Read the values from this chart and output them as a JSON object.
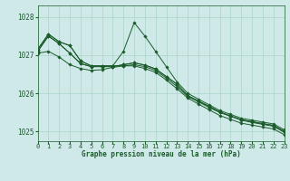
{
  "xlabel": "Graphe pression niveau de la mer (hPa)",
  "bg_color": "#cfe8e8",
  "grid_color": "#aad4cc",
  "line_color": "#1a5c2a",
  "xlim": [
    0,
    23
  ],
  "ylim": [
    1024.75,
    1028.3
  ],
  "yticks": [
    1025,
    1026,
    1027,
    1028
  ],
  "xticks": [
    0,
    1,
    2,
    3,
    4,
    5,
    6,
    7,
    8,
    9,
    10,
    11,
    12,
    13,
    14,
    15,
    16,
    17,
    18,
    19,
    20,
    21,
    22,
    23
  ],
  "series": [
    [
      1027.15,
      1027.55,
      1027.35,
      1027.25,
      1026.85,
      1026.72,
      1026.72,
      1026.72,
      1026.72,
      1026.72,
      1026.65,
      1026.55,
      1026.35,
      1026.12,
      1025.88,
      1025.72,
      1025.57,
      1025.42,
      1025.32,
      1025.22,
      1025.17,
      1025.12,
      1025.07,
      1024.92
    ],
    [
      1027.15,
      1027.55,
      1027.35,
      1027.25,
      1026.85,
      1026.72,
      1026.72,
      1026.72,
      1027.1,
      1027.85,
      1027.5,
      1027.1,
      1026.7,
      1026.3,
      1026.0,
      1025.85,
      1025.7,
      1025.55,
      1025.45,
      1025.35,
      1025.3,
      1025.25,
      1025.2,
      1025.05
    ],
    [
      1027.1,
      1027.5,
      1027.3,
      1027.05,
      1026.78,
      1026.7,
      1026.7,
      1026.7,
      1026.75,
      1026.8,
      1026.74,
      1026.64,
      1026.44,
      1026.24,
      1025.94,
      1025.8,
      1025.66,
      1025.51,
      1025.41,
      1025.31,
      1025.26,
      1025.21,
      1025.16,
      1025.01
    ],
    [
      1027.1,
      1027.5,
      1027.3,
      1027.05,
      1026.78,
      1026.7,
      1026.7,
      1026.7,
      1026.75,
      1026.8,
      1026.74,
      1026.64,
      1026.44,
      1026.24,
      1025.94,
      1025.8,
      1025.66,
      1025.51,
      1025.41,
      1025.31,
      1025.26,
      1025.21,
      1025.16,
      1025.01
    ],
    [
      1027.05,
      1027.1,
      1026.95,
      1026.75,
      1026.65,
      1026.6,
      1026.62,
      1026.68,
      1026.72,
      1026.75,
      1026.7,
      1026.6,
      1026.4,
      1026.18,
      1025.92,
      1025.78,
      1025.63,
      1025.5,
      1025.4,
      1025.3,
      1025.24,
      1025.19,
      1025.14,
      1024.98
    ]
  ]
}
